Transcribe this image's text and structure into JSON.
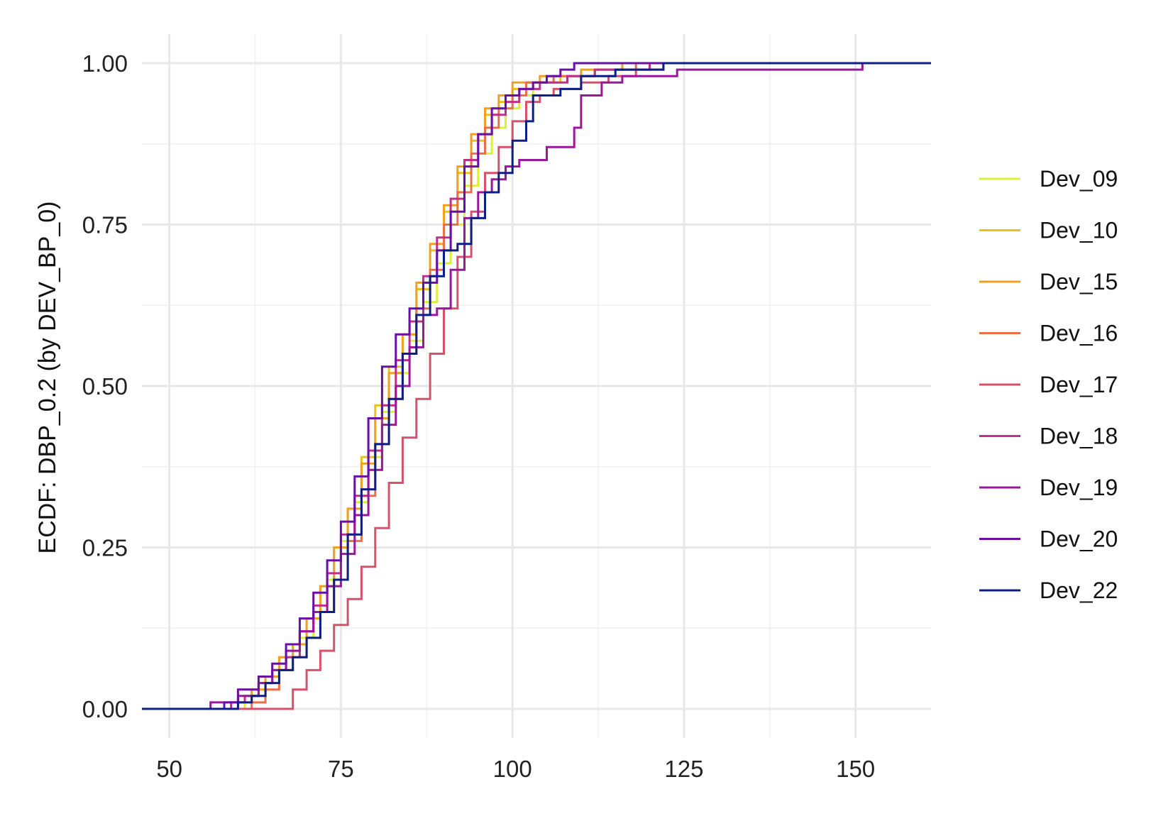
{
  "chart_data": {
    "type": "line",
    "step": true,
    "xlabel": "",
    "ylabel": "ECDF: DBP_0.2 (by DEV_BP_0)",
    "xlim": [
      46,
      161
    ],
    "ylim": [
      -0.045,
      1.045
    ],
    "x_ticks": [
      50,
      75,
      100,
      125,
      150
    ],
    "x_tick_labels": [
      "50",
      "75",
      "100",
      "125",
      "150"
    ],
    "x_minor": [
      62.5,
      87.5,
      112.5,
      137.5
    ],
    "y_ticks": [
      0,
      0.25,
      0.5,
      0.75,
      1
    ],
    "y_tick_labels": [
      "0.00",
      "0.25",
      "0.50",
      "0.75",
      "1.00"
    ],
    "y_minor": [
      0.125,
      0.375,
      0.625,
      0.875
    ],
    "grid": true,
    "legend_position": "right",
    "series": [
      {
        "name": "Dev_09",
        "color": "#d9f238",
        "points": [
          [
            46,
            0
          ],
          [
            59,
            0
          ],
          [
            61,
            0.02
          ],
          [
            63,
            0.04
          ],
          [
            65,
            0.06
          ],
          [
            67,
            0.08
          ],
          [
            69,
            0.11
          ],
          [
            71,
            0.15
          ],
          [
            73,
            0.2
          ],
          [
            75,
            0.26
          ],
          [
            77,
            0.32
          ],
          [
            79,
            0.39
          ],
          [
            81,
            0.46
          ],
          [
            83,
            0.52
          ],
          [
            85,
            0.57
          ],
          [
            87,
            0.63
          ],
          [
            89,
            0.69
          ],
          [
            91,
            0.75
          ],
          [
            93,
            0.81
          ],
          [
            95,
            0.86
          ],
          [
            97,
            0.9
          ],
          [
            99,
            0.93
          ],
          [
            101,
            0.95
          ],
          [
            103,
            0.97
          ],
          [
            106,
            0.98
          ],
          [
            110,
            0.99
          ],
          [
            116,
            1
          ],
          [
            161,
            1
          ]
        ]
      },
      {
        "name": "Dev_10",
        "color": "#e8c41a",
        "points": [
          [
            46,
            0
          ],
          [
            58,
            0
          ],
          [
            60,
            0.01
          ],
          [
            62,
            0.03
          ],
          [
            64,
            0.05
          ],
          [
            66,
            0.08
          ],
          [
            68,
            0.1
          ],
          [
            70,
            0.14
          ],
          [
            72,
            0.19
          ],
          [
            74,
            0.25
          ],
          [
            76,
            0.31
          ],
          [
            78,
            0.39
          ],
          [
            80,
            0.47
          ],
          [
            82,
            0.53
          ],
          [
            84,
            0.58
          ],
          [
            86,
            0.65
          ],
          [
            88,
            0.71
          ],
          [
            90,
            0.77
          ],
          [
            92,
            0.83
          ],
          [
            94,
            0.88
          ],
          [
            96,
            0.92
          ],
          [
            98,
            0.94
          ],
          [
            100,
            0.96
          ],
          [
            103,
            0.97
          ],
          [
            107,
            0.98
          ],
          [
            112,
            0.99
          ],
          [
            118,
            1
          ],
          [
            161,
            1
          ]
        ]
      },
      {
        "name": "Dev_15",
        "color": "#f2a020",
        "points": [
          [
            46,
            0
          ],
          [
            57,
            0
          ],
          [
            60,
            0.01
          ],
          [
            62,
            0.03
          ],
          [
            64,
            0.05
          ],
          [
            66,
            0.08
          ],
          [
            68,
            0.1
          ],
          [
            70,
            0.14
          ],
          [
            72,
            0.19
          ],
          [
            74,
            0.25
          ],
          [
            76,
            0.31
          ],
          [
            78,
            0.38
          ],
          [
            80,
            0.45
          ],
          [
            82,
            0.52
          ],
          [
            84,
            0.58
          ],
          [
            86,
            0.66
          ],
          [
            88,
            0.72
          ],
          [
            90,
            0.78
          ],
          [
            92,
            0.84
          ],
          [
            94,
            0.89
          ],
          [
            96,
            0.93
          ],
          [
            98,
            0.95
          ],
          [
            100,
            0.97
          ],
          [
            104,
            0.98
          ],
          [
            110,
            0.99
          ],
          [
            116,
            1
          ],
          [
            161,
            1
          ]
        ]
      },
      {
        "name": "Dev_16",
        "color": "#ec7046",
        "points": [
          [
            46,
            0
          ],
          [
            58,
            0
          ],
          [
            62,
            0.01
          ],
          [
            64,
            0.03
          ],
          [
            66,
            0.06
          ],
          [
            68,
            0.08
          ],
          [
            70,
            0.11
          ],
          [
            72,
            0.15
          ],
          [
            74,
            0.2
          ],
          [
            76,
            0.26
          ],
          [
            78,
            0.33
          ],
          [
            80,
            0.41
          ],
          [
            82,
            0.48
          ],
          [
            84,
            0.55
          ],
          [
            86,
            0.62
          ],
          [
            88,
            0.68
          ],
          [
            90,
            0.75
          ],
          [
            92,
            0.8
          ],
          [
            94,
            0.86
          ],
          [
            96,
            0.9
          ],
          [
            98,
            0.93
          ],
          [
            100,
            0.95
          ],
          [
            102,
            0.97
          ],
          [
            106,
            0.98
          ],
          [
            112,
            0.99
          ],
          [
            118,
            1
          ],
          [
            161,
            1
          ]
        ]
      },
      {
        "name": "Dev_17",
        "color": "#d9506a",
        "points": [
          [
            46,
            0
          ],
          [
            66,
            0
          ],
          [
            68,
            0.03
          ],
          [
            70,
            0.06
          ],
          [
            72,
            0.09
          ],
          [
            74,
            0.13
          ],
          [
            76,
            0.17
          ],
          [
            78,
            0.22
          ],
          [
            80,
            0.28
          ],
          [
            82,
            0.35
          ],
          [
            84,
            0.42
          ],
          [
            86,
            0.48
          ],
          [
            88,
            0.55
          ],
          [
            90,
            0.62
          ],
          [
            92,
            0.7
          ],
          [
            94,
            0.77
          ],
          [
            96,
            0.83
          ],
          [
            98,
            0.87
          ],
          [
            100,
            0.91
          ],
          [
            102,
            0.94
          ],
          [
            104,
            0.95
          ],
          [
            106,
            0.96
          ],
          [
            110,
            0.97
          ],
          [
            114,
            0.98
          ],
          [
            118,
            0.99
          ],
          [
            122,
            1
          ],
          [
            161,
            1
          ]
        ]
      },
      {
        "name": "Dev_18",
        "color": "#c02f8c",
        "points": [
          [
            46,
            0
          ],
          [
            57,
            0
          ],
          [
            59,
            0.01
          ],
          [
            61,
            0.02
          ],
          [
            63,
            0.04
          ],
          [
            65,
            0.06
          ],
          [
            67,
            0.08
          ],
          [
            69,
            0.12
          ],
          [
            71,
            0.16
          ],
          [
            73,
            0.21
          ],
          [
            75,
            0.27
          ],
          [
            77,
            0.33
          ],
          [
            79,
            0.4
          ],
          [
            81,
            0.47
          ],
          [
            83,
            0.54
          ],
          [
            85,
            0.6
          ],
          [
            87,
            0.67
          ],
          [
            89,
            0.73
          ],
          [
            91,
            0.79
          ],
          [
            93,
            0.85
          ],
          [
            95,
            0.89
          ],
          [
            97,
            0.92
          ],
          [
            99,
            0.94
          ],
          [
            101,
            0.96
          ],
          [
            104,
            0.97
          ],
          [
            108,
            0.98
          ],
          [
            112,
            0.99
          ],
          [
            120,
            1
          ],
          [
            161,
            1
          ]
        ]
      },
      {
        "name": "Dev_19",
        "color": "#9a179c",
        "points": [
          [
            46,
            0
          ],
          [
            55,
            0
          ],
          [
            56,
            0.01
          ],
          [
            60,
            0.02
          ],
          [
            63,
            0.04
          ],
          [
            65,
            0.06
          ],
          [
            67,
            0.09
          ],
          [
            69,
            0.12
          ],
          [
            71,
            0.15
          ],
          [
            73,
            0.19
          ],
          [
            75,
            0.24
          ],
          [
            77,
            0.3
          ],
          [
            79,
            0.37
          ],
          [
            81,
            0.44
          ],
          [
            83,
            0.5
          ],
          [
            85,
            0.56
          ],
          [
            87,
            0.61
          ],
          [
            89,
            0.62
          ],
          [
            91,
            0.68
          ],
          [
            93,
            0.76
          ],
          [
            95,
            0.8
          ],
          [
            97,
            0.82
          ],
          [
            99,
            0.84
          ],
          [
            101,
            0.85
          ],
          [
            105,
            0.87
          ],
          [
            109,
            0.9
          ],
          [
            110,
            0.95
          ],
          [
            113,
            0.97
          ],
          [
            116,
            0.98
          ],
          [
            124,
            0.99
          ],
          [
            151,
            1
          ],
          [
            161,
            1
          ]
        ]
      },
      {
        "name": "Dev_20",
        "color": "#6a0fa5",
        "points": [
          [
            46,
            0
          ],
          [
            57,
            0
          ],
          [
            58,
            0.01
          ],
          [
            60,
            0.03
          ],
          [
            63,
            0.05
          ],
          [
            65,
            0.07
          ],
          [
            67,
            0.1
          ],
          [
            69,
            0.14
          ],
          [
            71,
            0.18
          ],
          [
            73,
            0.23
          ],
          [
            75,
            0.29
          ],
          [
            77,
            0.36
          ],
          [
            79,
            0.45
          ],
          [
            81,
            0.53
          ],
          [
            83,
            0.58
          ],
          [
            85,
            0.62
          ],
          [
            87,
            0.66
          ],
          [
            89,
            0.71
          ],
          [
            91,
            0.77
          ],
          [
            93,
            0.84
          ],
          [
            95,
            0.89
          ],
          [
            97,
            0.93
          ],
          [
            99,
            0.95
          ],
          [
            101,
            0.96
          ],
          [
            103,
            0.97
          ],
          [
            105,
            0.98
          ],
          [
            107,
            0.99
          ],
          [
            109,
            1
          ],
          [
            161,
            1
          ]
        ]
      },
      {
        "name": "Dev_22",
        "color": "#0c1f86",
        "points": [
          [
            46,
            0
          ],
          [
            59,
            0
          ],
          [
            60,
            0.01
          ],
          [
            62,
            0.02
          ],
          [
            64,
            0.04
          ],
          [
            66,
            0.06
          ],
          [
            68,
            0.08
          ],
          [
            70,
            0.11
          ],
          [
            72,
            0.15
          ],
          [
            74,
            0.2
          ],
          [
            76,
            0.27
          ],
          [
            78,
            0.34
          ],
          [
            80,
            0.41
          ],
          [
            82,
            0.48
          ],
          [
            84,
            0.55
          ],
          [
            86,
            0.61
          ],
          [
            88,
            0.67
          ],
          [
            90,
            0.71
          ],
          [
            92,
            0.72
          ],
          [
            94,
            0.76
          ],
          [
            96,
            0.8
          ],
          [
            98,
            0.83
          ],
          [
            100,
            0.88
          ],
          [
            102,
            0.91
          ],
          [
            103,
            0.95
          ],
          [
            107,
            0.96
          ],
          [
            110,
            0.98
          ],
          [
            115,
            0.99
          ],
          [
            122,
            1
          ],
          [
            161,
            1
          ]
        ]
      }
    ]
  }
}
